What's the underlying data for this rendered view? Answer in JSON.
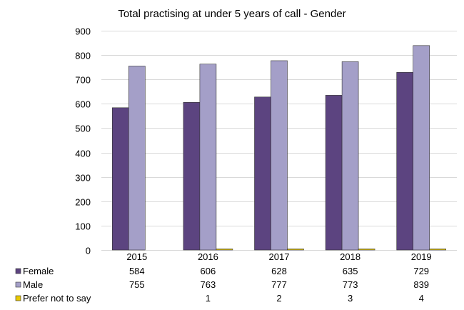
{
  "chart_data": {
    "type": "bar",
    "title": "Total practising at under 5 years of call - Gender",
    "categories": [
      "2015",
      "2016",
      "2017",
      "2018",
      "2019"
    ],
    "ylim": [
      0,
      900
    ],
    "yticks": [
      0,
      100,
      200,
      300,
      400,
      500,
      600,
      700,
      800,
      900
    ],
    "grid": true,
    "legend": "data-table-left",
    "series": [
      {
        "name": "Female",
        "values": [
          584,
          606,
          628,
          635,
          729
        ],
        "labels": [
          "584",
          "606",
          "628",
          "635",
          "729"
        ],
        "color": "#5c4480"
      },
      {
        "name": "Male",
        "values": [
          755,
          763,
          777,
          773,
          839
        ],
        "labels": [
          "755",
          "763",
          "777",
          "773",
          "839"
        ],
        "color": "#a49fc8"
      },
      {
        "name": "Prefer not to say",
        "values": [
          0,
          1,
          2,
          3,
          4
        ],
        "labels": [
          "",
          "1",
          "2",
          "3",
          "4"
        ],
        "color": "#e8c800"
      }
    ]
  }
}
